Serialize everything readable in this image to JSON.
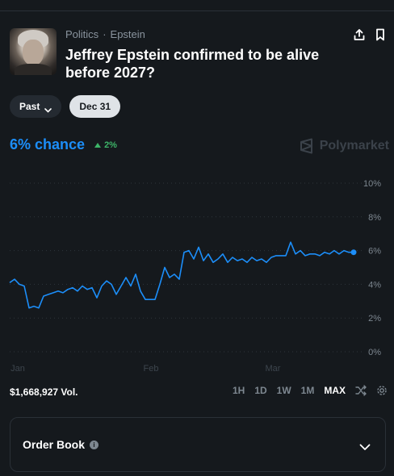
{
  "header": {
    "breadcrumbs": [
      "Politics",
      "Epstein"
    ],
    "separator": "·",
    "title": "Jeffrey Epstein confirmed to be alive before 2027?",
    "icons": [
      "share-icon",
      "bookmark-icon"
    ]
  },
  "filters": {
    "past_label": "Past",
    "date_label": "Dec 31"
  },
  "summary": {
    "chance_text": "6% chance",
    "delta_text": "2%",
    "brand": "Polymarket"
  },
  "chart_data": {
    "type": "line",
    "x_labels": [
      "Jan",
      "Feb",
      "Mar"
    ],
    "y_ticks": [
      "10%",
      "8%",
      "6%",
      "4%",
      "2%",
      "0%"
    ],
    "ylim": [
      0,
      10
    ],
    "grid": true,
    "series": [
      {
        "color": "#1c8ef9",
        "values": [
          4.1,
          4.3,
          4.0,
          3.9,
          2.6,
          2.7,
          2.6,
          3.3,
          3.4,
          3.5,
          3.6,
          3.5,
          3.7,
          3.8,
          3.6,
          3.9,
          3.7,
          3.8,
          3.2,
          3.9,
          4.2,
          4.0,
          3.4,
          3.9,
          4.4,
          3.9,
          4.6,
          3.6,
          3.1,
          3.1,
          3.1,
          4.0,
          5.0,
          4.4,
          4.6,
          4.3,
          5.9,
          6.0,
          5.5,
          6.2,
          5.4,
          5.8,
          5.3,
          5.5,
          5.8,
          5.3,
          5.6,
          5.4,
          5.5,
          5.3,
          5.6,
          5.4,
          5.5,
          5.3,
          5.6,
          5.7,
          5.7,
          5.7,
          6.5,
          5.8,
          6.0,
          5.7,
          5.8,
          5.8,
          5.7,
          5.9,
          5.8,
          6.0,
          5.8,
          6.0,
          5.9,
          5.9
        ]
      }
    ]
  },
  "footer": {
    "volume": "$1,668,927 Vol.",
    "ranges": [
      "1H",
      "1D",
      "1W",
      "1M",
      "MAX"
    ],
    "active_range": "MAX"
  },
  "order_book": {
    "label": "Order Book",
    "info_icon": "i"
  }
}
